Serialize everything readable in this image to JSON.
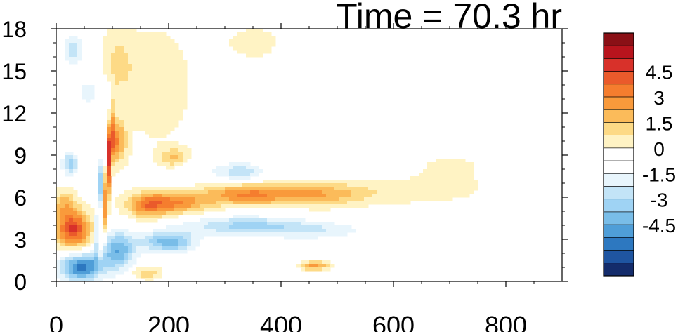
{
  "chart_data": {
    "type": "heatmap",
    "title": "Time = 70.3 hr",
    "xlabel": "",
    "ylabel": "",
    "xlim": [
      0,
      900
    ],
    "ylim": [
      0,
      18
    ],
    "x_ticks": [
      "0",
      "200",
      "400",
      "600",
      "800"
    ],
    "y_ticks": [
      "0",
      "3",
      "6",
      "9",
      "12",
      "15",
      "18"
    ],
    "grid": false,
    "colorbar": {
      "levels": [
        -5.25,
        -4.5,
        -3.75,
        -3,
        -2.25,
        -1.5,
        -0.75,
        0,
        0.75,
        1.5,
        2.25,
        3,
        3.75,
        4.5,
        5.25
      ],
      "tick_labels": [
        "4.5",
        "3",
        "1.5",
        "0",
        "-1.5",
        "-3",
        "-4.5"
      ],
      "tick_values": [
        4.5,
        3,
        1.5,
        0,
        -1.5,
        -3,
        -4.5
      ],
      "colors_top_to_bottom": [
        "#8a1016",
        "#b8141d",
        "#d8312a",
        "#ea5a2b",
        "#f57d2e",
        "#f99a3b",
        "#fbbb5a",
        "#fdda86",
        "#fff3c4",
        "#ffffff",
        "#ffffff",
        "#e8f5fc",
        "#c3e4f7",
        "#9fd3f4",
        "#79bde8",
        "#4f9ed8",
        "#2d78c0",
        "#1f55a1",
        "#142c6b"
      ]
    },
    "features": [
      {
        "name": "surface negative core",
        "x": 40,
        "y": 1,
        "value": -4.5
      },
      {
        "name": "low-level positive lobe",
        "x": 30,
        "y": 4.5,
        "value": 4.5
      },
      {
        "name": "narrow vertical dipole",
        "x": 95,
        "y": 7,
        "value": 4.5
      },
      {
        "name": "positive band",
        "x": 330,
        "y": 6.2,
        "value": 3
      },
      {
        "name": "negative band",
        "x": 180,
        "y": 2.8,
        "value": -3.75
      },
      {
        "name": "mid-level negative",
        "x": 330,
        "y": 7.8,
        "value": -2.25
      },
      {
        "name": "near-surface positive",
        "x": 460,
        "y": 1.1,
        "value": 3
      },
      {
        "name": "upper negative",
        "x": 20,
        "y": 17,
        "value": -2.25
      }
    ]
  }
}
